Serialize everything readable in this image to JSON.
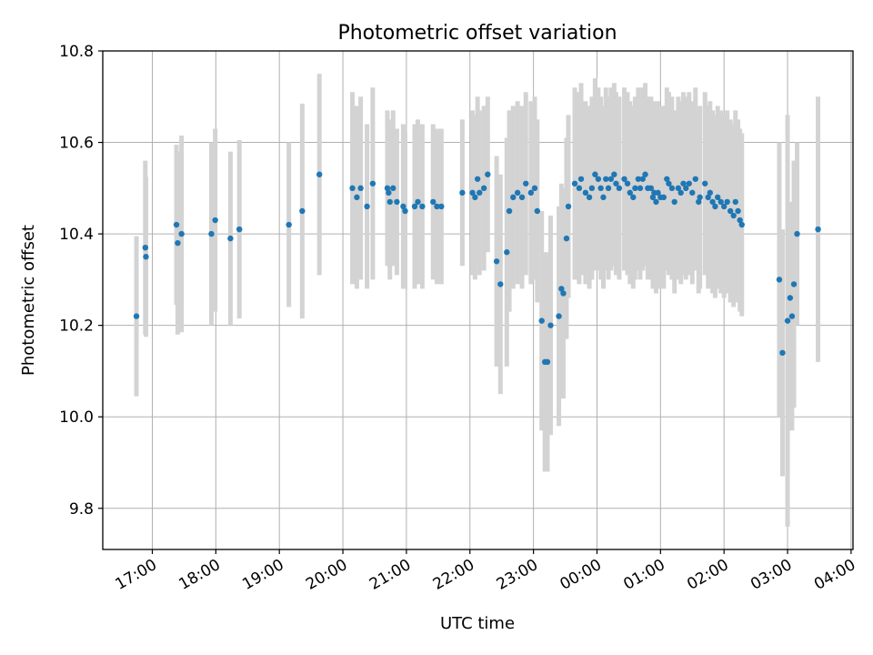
{
  "chart_data": {
    "type": "scatter",
    "title": "Photometric offset variation",
    "xlabel": "UTC time",
    "ylabel": "Photometric offset",
    "grid": true,
    "legend": "none",
    "x_unit": "hours since 17:00 UTC",
    "xlim": [
      -0.78,
      11.03
    ],
    "ylim": [
      9.71,
      10.8
    ],
    "x_ticks": [
      {
        "value": 0,
        "label": "17:00"
      },
      {
        "value": 1,
        "label": "18:00"
      },
      {
        "value": 2,
        "label": "19:00"
      },
      {
        "value": 3,
        "label": "20:00"
      },
      {
        "value": 4,
        "label": "21:00"
      },
      {
        "value": 5,
        "label": "22:00"
      },
      {
        "value": 6,
        "label": "23:00"
      },
      {
        "value": 7,
        "label": "00:00"
      },
      {
        "value": 8,
        "label": "01:00"
      },
      {
        "value": 9,
        "label": "02:00"
      },
      {
        "value": 10,
        "label": "03:00"
      },
      {
        "value": 11,
        "label": "04:00"
      }
    ],
    "y_ticks": [
      {
        "value": 9.8,
        "label": "9.8"
      },
      {
        "value": 10.0,
        "label": "10.0"
      },
      {
        "value": 10.2,
        "label": "10.2"
      },
      {
        "value": 10.4,
        "label": "10.4"
      },
      {
        "value": 10.6,
        "label": "10.6"
      },
      {
        "value": 10.8,
        "label": "10.8"
      }
    ],
    "colors": {
      "point": "#1f77b4",
      "errorbar": "#d3d3d3",
      "grid": "#b0b0b0",
      "axis": "#000000"
    },
    "series": [
      {
        "name": "photometric offset",
        "x": [
          -0.25,
          -0.11,
          -0.1,
          0.38,
          0.4,
          0.46,
          0.93,
          0.99,
          1.23,
          1.37,
          2.15,
          2.36,
          2.63,
          3.15,
          3.22,
          3.28,
          3.38,
          3.47,
          3.7,
          3.72,
          3.74,
          3.79,
          3.85,
          3.95,
          3.98,
          4.13,
          4.18,
          4.25,
          4.42,
          4.48,
          4.55,
          4.88,
          5.04,
          5.08,
          5.12,
          5.15,
          5.22,
          5.28,
          5.42,
          5.48,
          5.58,
          5.62,
          5.68,
          5.75,
          5.82,
          5.88,
          5.96,
          6.02,
          6.06,
          6.13,
          6.18,
          6.22,
          6.27,
          6.4,
          6.44,
          6.47,
          6.52,
          6.55,
          6.65,
          6.72,
          6.75,
          6.82,
          6.88,
          6.92,
          6.97,
          7.02,
          7.06,
          7.1,
          7.14,
          7.18,
          7.22,
          7.27,
          7.3,
          7.35,
          7.43,
          7.48,
          7.52,
          7.57,
          7.6,
          7.65,
          7.68,
          7.72,
          7.76,
          7.8,
          7.85,
          7.88,
          7.9,
          7.93,
          7.96,
          8.0,
          8.05,
          8.1,
          8.13,
          8.18,
          8.22,
          8.28,
          8.32,
          8.36,
          8.4,
          8.45,
          8.5,
          8.55,
          8.6,
          8.62,
          8.7,
          8.75,
          8.78,
          8.82,
          8.86,
          8.9,
          8.95,
          9.0,
          9.05,
          9.1,
          9.15,
          9.18,
          9.22,
          9.25,
          9.28,
          9.87,
          9.92,
          10.0,
          10.04,
          10.07,
          10.1,
          10.15,
          10.48
        ],
        "y": [
          10.22,
          10.37,
          10.35,
          10.42,
          10.38,
          10.4,
          10.4,
          10.43,
          10.39,
          10.41,
          10.42,
          10.45,
          10.53,
          10.5,
          10.48,
          10.5,
          10.46,
          10.51,
          10.5,
          10.49,
          10.47,
          10.5,
          10.47,
          10.46,
          10.45,
          10.46,
          10.47,
          10.46,
          10.47,
          10.46,
          10.46,
          10.49,
          10.49,
          10.48,
          10.52,
          10.49,
          10.5,
          10.53,
          10.34,
          10.29,
          10.36,
          10.45,
          10.48,
          10.49,
          10.48,
          10.51,
          10.49,
          10.5,
          10.45,
          10.21,
          10.12,
          10.12,
          10.2,
          10.22,
          10.28,
          10.27,
          10.39,
          10.46,
          10.51,
          10.5,
          10.52,
          10.49,
          10.48,
          10.5,
          10.53,
          10.52,
          10.5,
          10.48,
          10.52,
          10.5,
          10.52,
          10.53,
          10.51,
          10.5,
          10.52,
          10.51,
          10.49,
          10.48,
          10.5,
          10.52,
          10.5,
          10.52,
          10.53,
          10.5,
          10.5,
          10.48,
          10.49,
          10.47,
          10.49,
          10.48,
          10.48,
          10.52,
          10.51,
          10.5,
          10.47,
          10.5,
          10.49,
          10.51,
          10.5,
          10.51,
          10.49,
          10.52,
          10.47,
          10.48,
          10.51,
          10.48,
          10.49,
          10.47,
          10.46,
          10.48,
          10.47,
          10.46,
          10.47,
          10.45,
          10.44,
          10.47,
          10.45,
          10.43,
          10.42,
          10.3,
          10.14,
          10.21,
          10.26,
          10.22,
          10.29,
          10.4,
          10.41
        ],
        "err": [
          0.175,
          0.19,
          0.175,
          0.175,
          0.2,
          0.215,
          0.2,
          0.2,
          0.19,
          0.195,
          0.18,
          0.235,
          0.22,
          0.21,
          0.2,
          0.2,
          0.18,
          0.21,
          0.17,
          0.16,
          0.17,
          0.17,
          0.16,
          0.18,
          0.17,
          0.18,
          0.18,
          0.18,
          0.17,
          0.17,
          0.17,
          0.16,
          0.18,
          0.18,
          0.18,
          0.18,
          0.18,
          0.17,
          0.23,
          0.24,
          0.25,
          0.22,
          0.2,
          0.2,
          0.2,
          0.2,
          0.2,
          0.2,
          0.2,
          0.24,
          0.24,
          0.24,
          0.24,
          0.24,
          0.23,
          0.23,
          0.22,
          0.2,
          0.21,
          0.21,
          0.21,
          0.2,
          0.2,
          0.2,
          0.21,
          0.2,
          0.2,
          0.2,
          0.2,
          0.2,
          0.2,
          0.2,
          0.2,
          0.2,
          0.2,
          0.2,
          0.2,
          0.2,
          0.2,
          0.2,
          0.2,
          0.2,
          0.2,
          0.2,
          0.2,
          0.2,
          0.2,
          0.2,
          0.2,
          0.2,
          0.2,
          0.2,
          0.2,
          0.2,
          0.2,
          0.2,
          0.2,
          0.2,
          0.2,
          0.2,
          0.2,
          0.2,
          0.2,
          0.2,
          0.2,
          0.2,
          0.2,
          0.2,
          0.2,
          0.2,
          0.2,
          0.2,
          0.2,
          0.2,
          0.2,
          0.2,
          0.2,
          0.2,
          0.2,
          0.3,
          0.27,
          0.45,
          0.2,
          0.25,
          0.27,
          0.2,
          0.29
        ]
      }
    ]
  }
}
